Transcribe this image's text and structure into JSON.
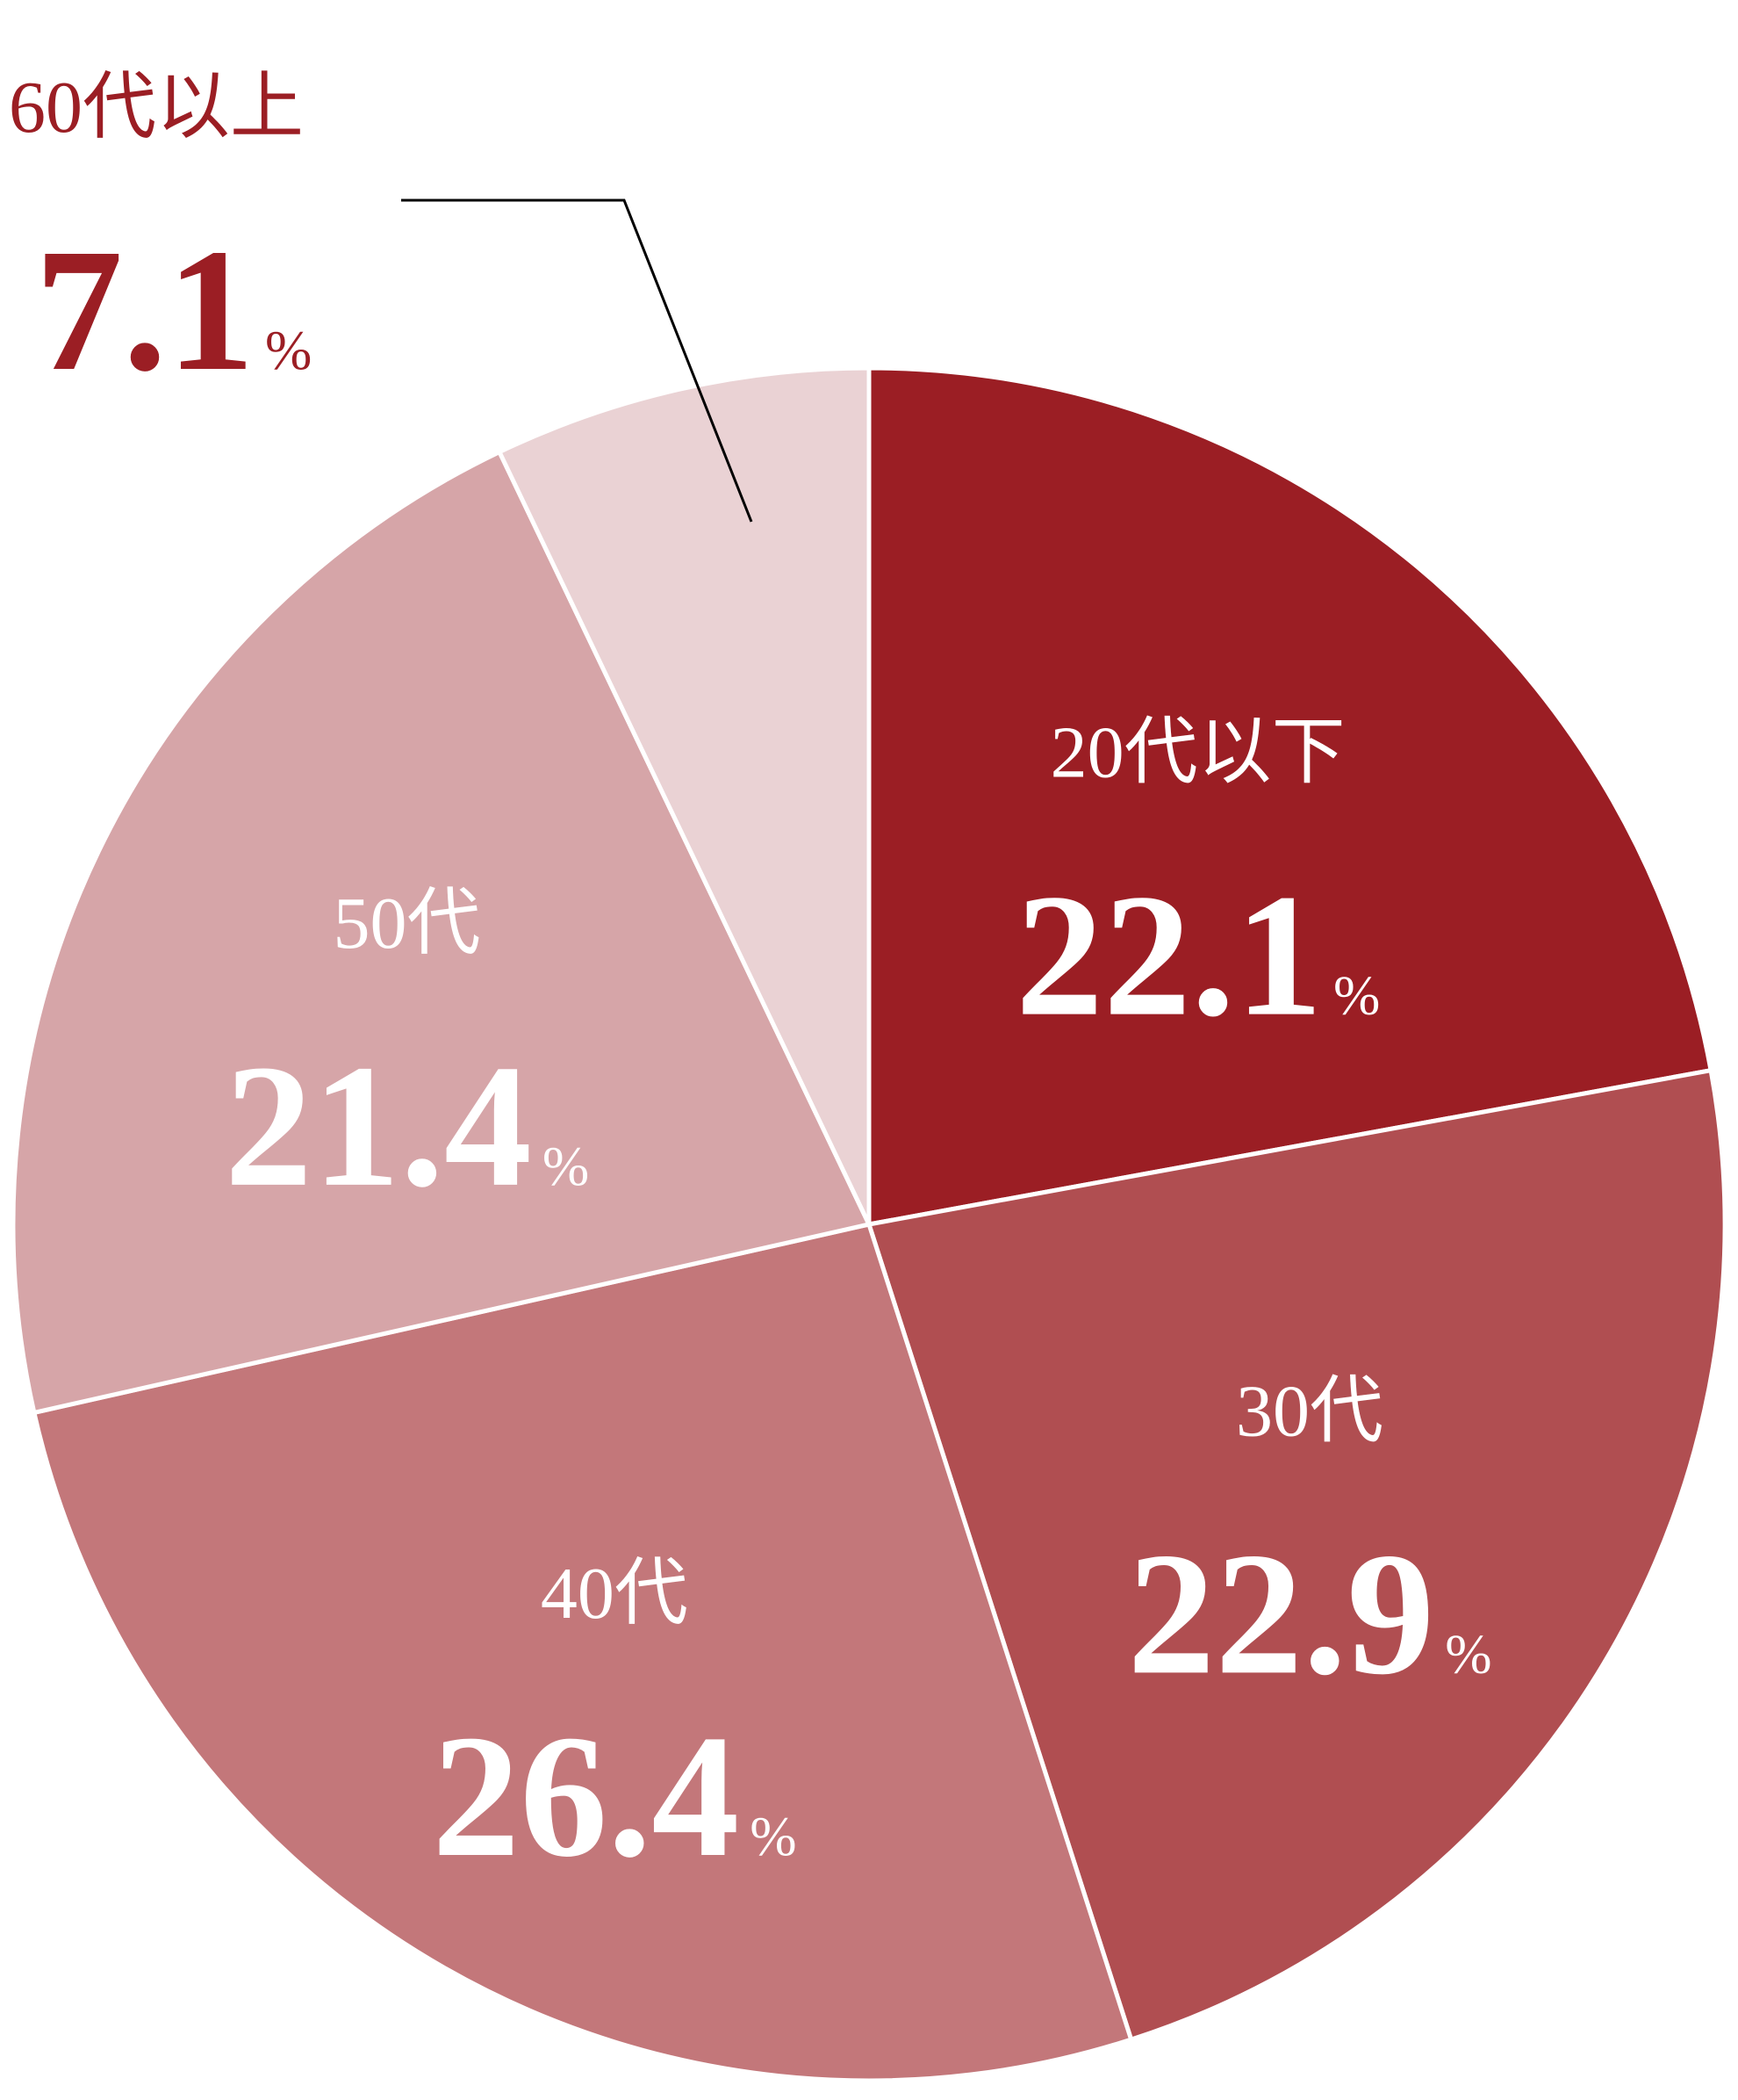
{
  "chart_data": {
    "type": "pie",
    "categories": [
      "20代以下",
      "30代",
      "40代",
      "50代",
      "60代以上"
    ],
    "values": [
      22.1,
      22.9,
      26.4,
      21.4,
      7.1
    ],
    "unit": "%",
    "colors": [
      "#9b1e24",
      "#b04e51",
      "#c3777a",
      "#d6a5a8",
      "#ead2d4"
    ]
  }
}
